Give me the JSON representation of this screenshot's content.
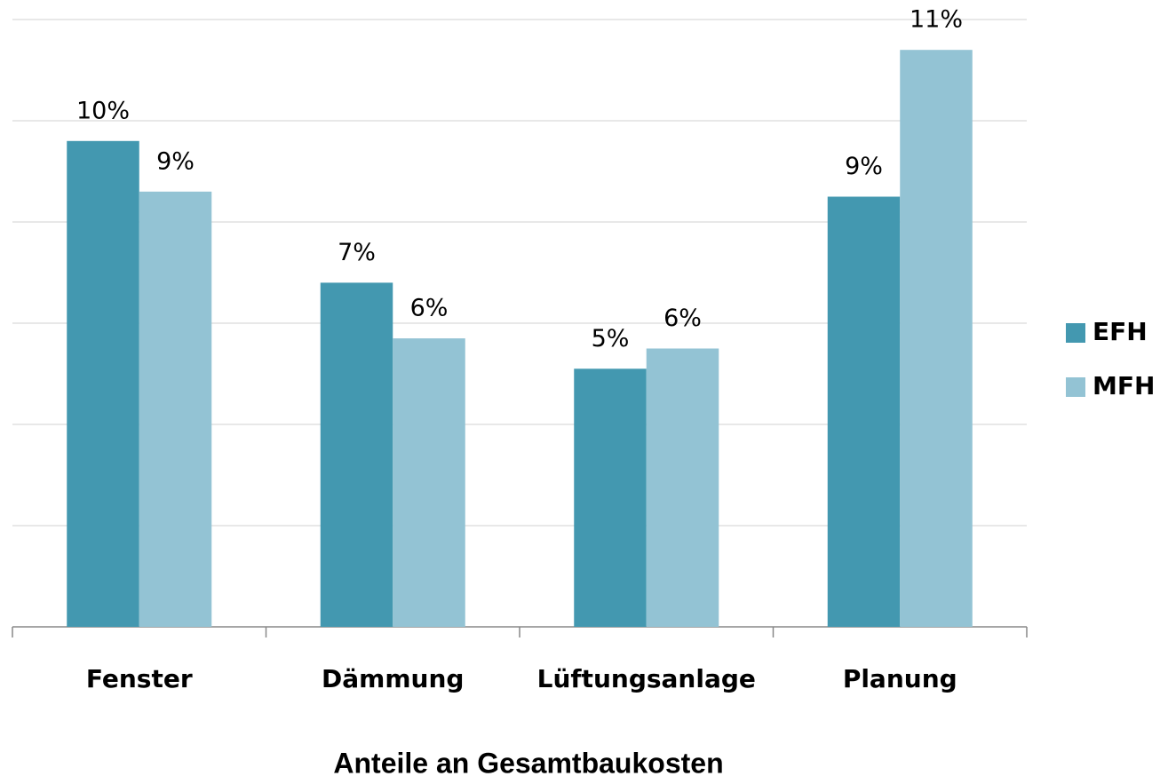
{
  "chart_data": {
    "type": "bar",
    "title": "Anteile an Gesamtbaukosten",
    "categories": [
      "Fenster",
      "Dämmung",
      "Lüftungsanlage",
      "Planung"
    ],
    "series": [
      {
        "name": "EFH",
        "color": "#4398b0",
        "values": [
          9.6,
          6.8,
          5.1,
          8.5
        ],
        "value_labels": [
          "10%",
          "7%",
          "5%",
          "9%"
        ]
      },
      {
        "name": "MFH",
        "color": "#93c3d4",
        "values": [
          8.6,
          5.7,
          5.5,
          11.4
        ],
        "value_labels": [
          "9%",
          "6%",
          "6%",
          "11%"
        ]
      }
    ],
    "ylim": [
      0,
      12
    ],
    "yticks": [
      0,
      2,
      4,
      6,
      8,
      10,
      12
    ],
    "grid": true,
    "legend": "right"
  }
}
